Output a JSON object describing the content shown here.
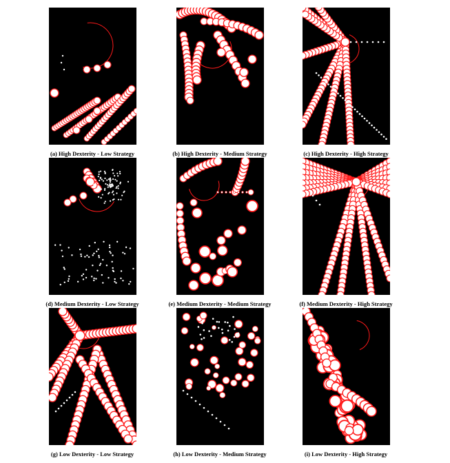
{
  "figure": {
    "panels": [
      {
        "caption": "(a) High Dexterity - Low Strategy"
      },
      {
        "caption": "(b) High Dexterity - Medium Strategy"
      },
      {
        "caption": "(c) High Dexterity - High Strategy"
      },
      {
        "caption": "(d) Medium Dexterity - Low Strategy"
      },
      {
        "caption": "(e) Medium Dexterity - Medium Strategy"
      },
      {
        "caption": "(f) Medium Dexterity - High Strategy"
      },
      {
        "caption": "(g) Low Dexterity - Low Strategy"
      },
      {
        "caption": "(h) Low Dexterity - Medium Strategy"
      },
      {
        "caption": "(i) Low Dexterity - High Strategy"
      }
    ],
    "colors": {
      "background": "#000000",
      "ring": "#ff1a1a",
      "fill": "#ffffff"
    }
  }
}
